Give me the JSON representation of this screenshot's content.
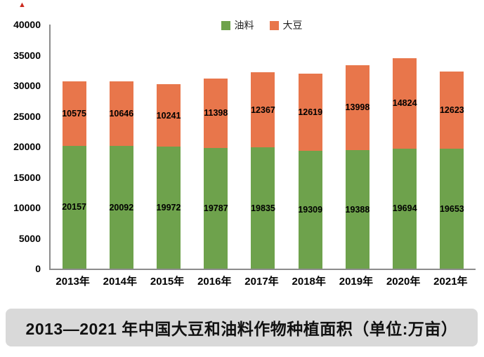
{
  "decoration": {
    "corner_mark": "▲"
  },
  "title_bar": {
    "text": "2013—2021 年中国大豆和油料作物种植面积（单位:万亩）"
  },
  "chart_data": {
    "type": "bar",
    "stacked": true,
    "title": "2013—2021 年中国大豆和油料作物种植面积（单位:万亩）",
    "xlabel": "",
    "ylabel": "",
    "categories": [
      "2013年",
      "2014年",
      "2015年",
      "2016年",
      "2017年",
      "2018年",
      "2019年",
      "2020年",
      "2021年"
    ],
    "series": [
      {
        "name": "油料",
        "color": "#6ea24c",
        "values": [
          20157,
          20092,
          19972,
          19787,
          19835,
          19309,
          19388,
          19694,
          19653
        ]
      },
      {
        "name": "大豆",
        "color": "#e8764b",
        "values": [
          10575,
          10646,
          10241,
          11398,
          12367,
          12619,
          13998,
          14824,
          12623
        ]
      }
    ],
    "ylim": [
      0,
      40000
    ],
    "ytick_step": 5000,
    "grid": false,
    "legend_position": "top-center",
    "value_labels": "inside-center"
  }
}
